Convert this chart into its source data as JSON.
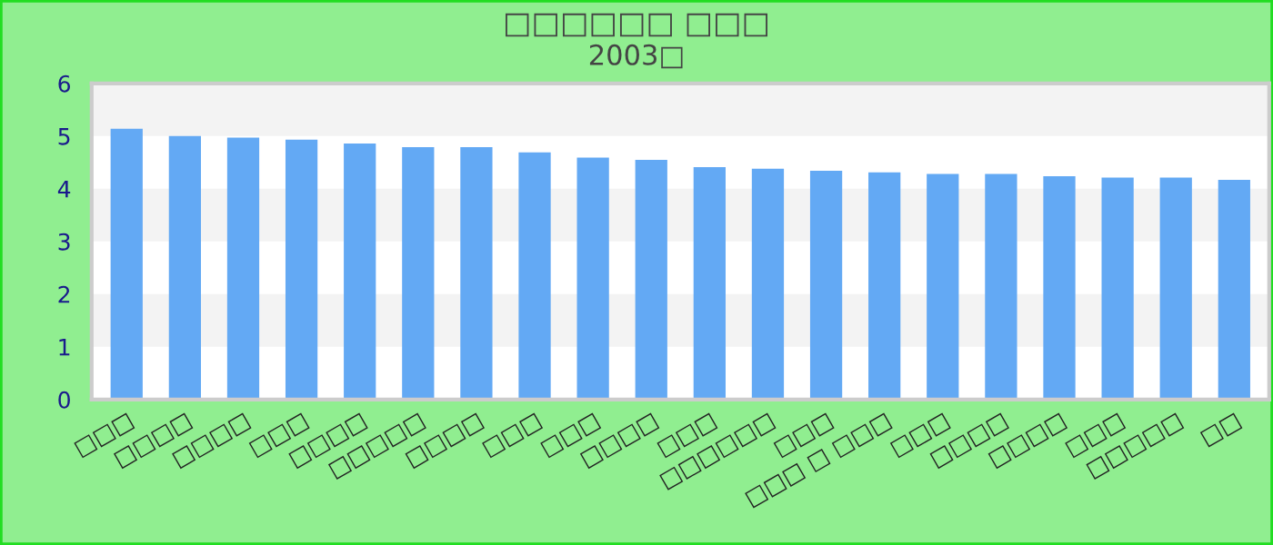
{
  "chart_data": {
    "type": "bar",
    "title": "□□□□□□ □□□",
    "subtitle": "2003□",
    "categories": [
      "□□□",
      "□□□□",
      "□□□□",
      "□□□",
      "□□□□",
      "□□□□□",
      "□□□□",
      "□□□",
      "□□□",
      "□□□□",
      "□□□",
      "□□□□□□",
      "□□□",
      "□□□ □ □□□",
      "□□□",
      "□□□□",
      "□□□□",
      "□□□",
      "□□□□□",
      "□□"
    ],
    "values": [
      5.14,
      5.0,
      4.97,
      4.93,
      4.86,
      4.79,
      4.79,
      4.69,
      4.59,
      4.55,
      4.41,
      4.38,
      4.34,
      4.31,
      4.28,
      4.28,
      4.24,
      4.21,
      4.21,
      4.17
    ],
    "color": "#63a9f4",
    "ylim": [
      0,
      6
    ],
    "yticks": [
      0,
      1,
      2,
      3,
      4,
      5,
      6
    ],
    "bands": [
      {
        "axis": "y",
        "from": 1,
        "to": 2,
        "color": "#f3f3f3"
      },
      {
        "axis": "y",
        "from": 3,
        "to": 4,
        "color": "#f3f3f3"
      },
      {
        "axis": "y",
        "from": 5,
        "to": 6,
        "color": "#f3f3f3"
      }
    ]
  }
}
